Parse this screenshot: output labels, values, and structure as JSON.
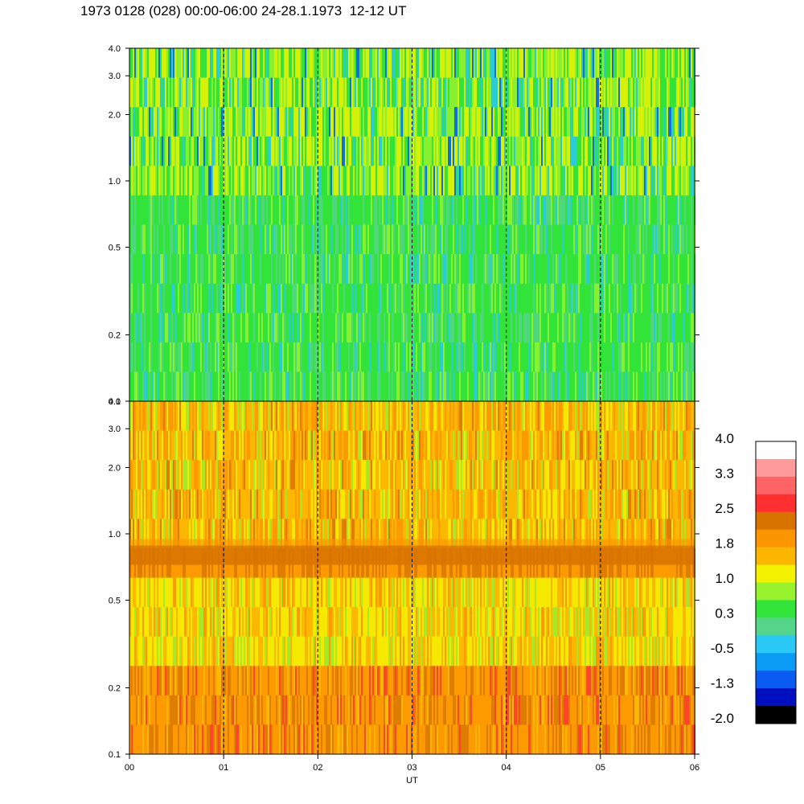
{
  "title": "1973 0128 (028) 00:00-06:00 24-28.1.1973  12-12 UT",
  "chart_data": [
    {
      "type": "heatmap",
      "panel": "upper",
      "x_range": [
        0,
        6
      ],
      "y_range": [
        0.1,
        4.0
      ],
      "y_scale": "log",
      "y_tick_labels": [
        "4.0",
        "3.0",
        "2.0",
        "1.0",
        "0.5",
        "0.2",
        "0.1"
      ],
      "y_tick_values": [
        4.0,
        3.0,
        2.0,
        1.0,
        0.5,
        0.2,
        0.1
      ],
      "hour_markers": [
        1,
        2,
        3,
        4,
        5
      ],
      "dominant_colors": [
        "#33e43b",
        "#55d58a",
        "#99f22e",
        "#f5f200",
        "#29c8f5",
        "#0a5cf0"
      ]
    },
    {
      "type": "heatmap",
      "panel": "lower",
      "x_range": [
        0,
        6
      ],
      "y_range": [
        0.1,
        4.0
      ],
      "y_scale": "log",
      "y_tick_labels": [
        "4.0",
        "3.0",
        "2.0",
        "1.0",
        "0.5",
        "0.2",
        "0.1"
      ],
      "y_tick_values": [
        4.0,
        3.0,
        2.0,
        1.0,
        0.5,
        0.2,
        0.1
      ],
      "hour_markers": [
        1,
        2,
        3,
        4,
        5
      ],
      "band_center": 0.8,
      "dominant_colors": [
        "#fbb700",
        "#fb9500",
        "#d87300",
        "#f5f200",
        "#99f22e",
        "#ff3030"
      ]
    }
  ],
  "x_axis": {
    "tick_labels": [
      "00",
      "01",
      "02",
      "03",
      "04",
      "05",
      "06"
    ],
    "tick_values": [
      0,
      1,
      2,
      3,
      4,
      5,
      6
    ],
    "label": "UT"
  },
  "colorbar": {
    "labels": [
      "4.0",
      "3.3",
      "2.5",
      "1.8",
      "1.0",
      "0.3",
      "-0.5",
      "-1.3",
      "-2.0"
    ],
    "colors": [
      "#ffffff",
      "#ff9a9a",
      "#ff6464",
      "#ff3030",
      "#d87300",
      "#fb9500",
      "#fbb700",
      "#f5f200",
      "#99f22e",
      "#33e43b",
      "#55d58a",
      "#29c8f5",
      "#0a9cf5",
      "#0a5cf0",
      "#0010c0",
      "#000000"
    ]
  }
}
